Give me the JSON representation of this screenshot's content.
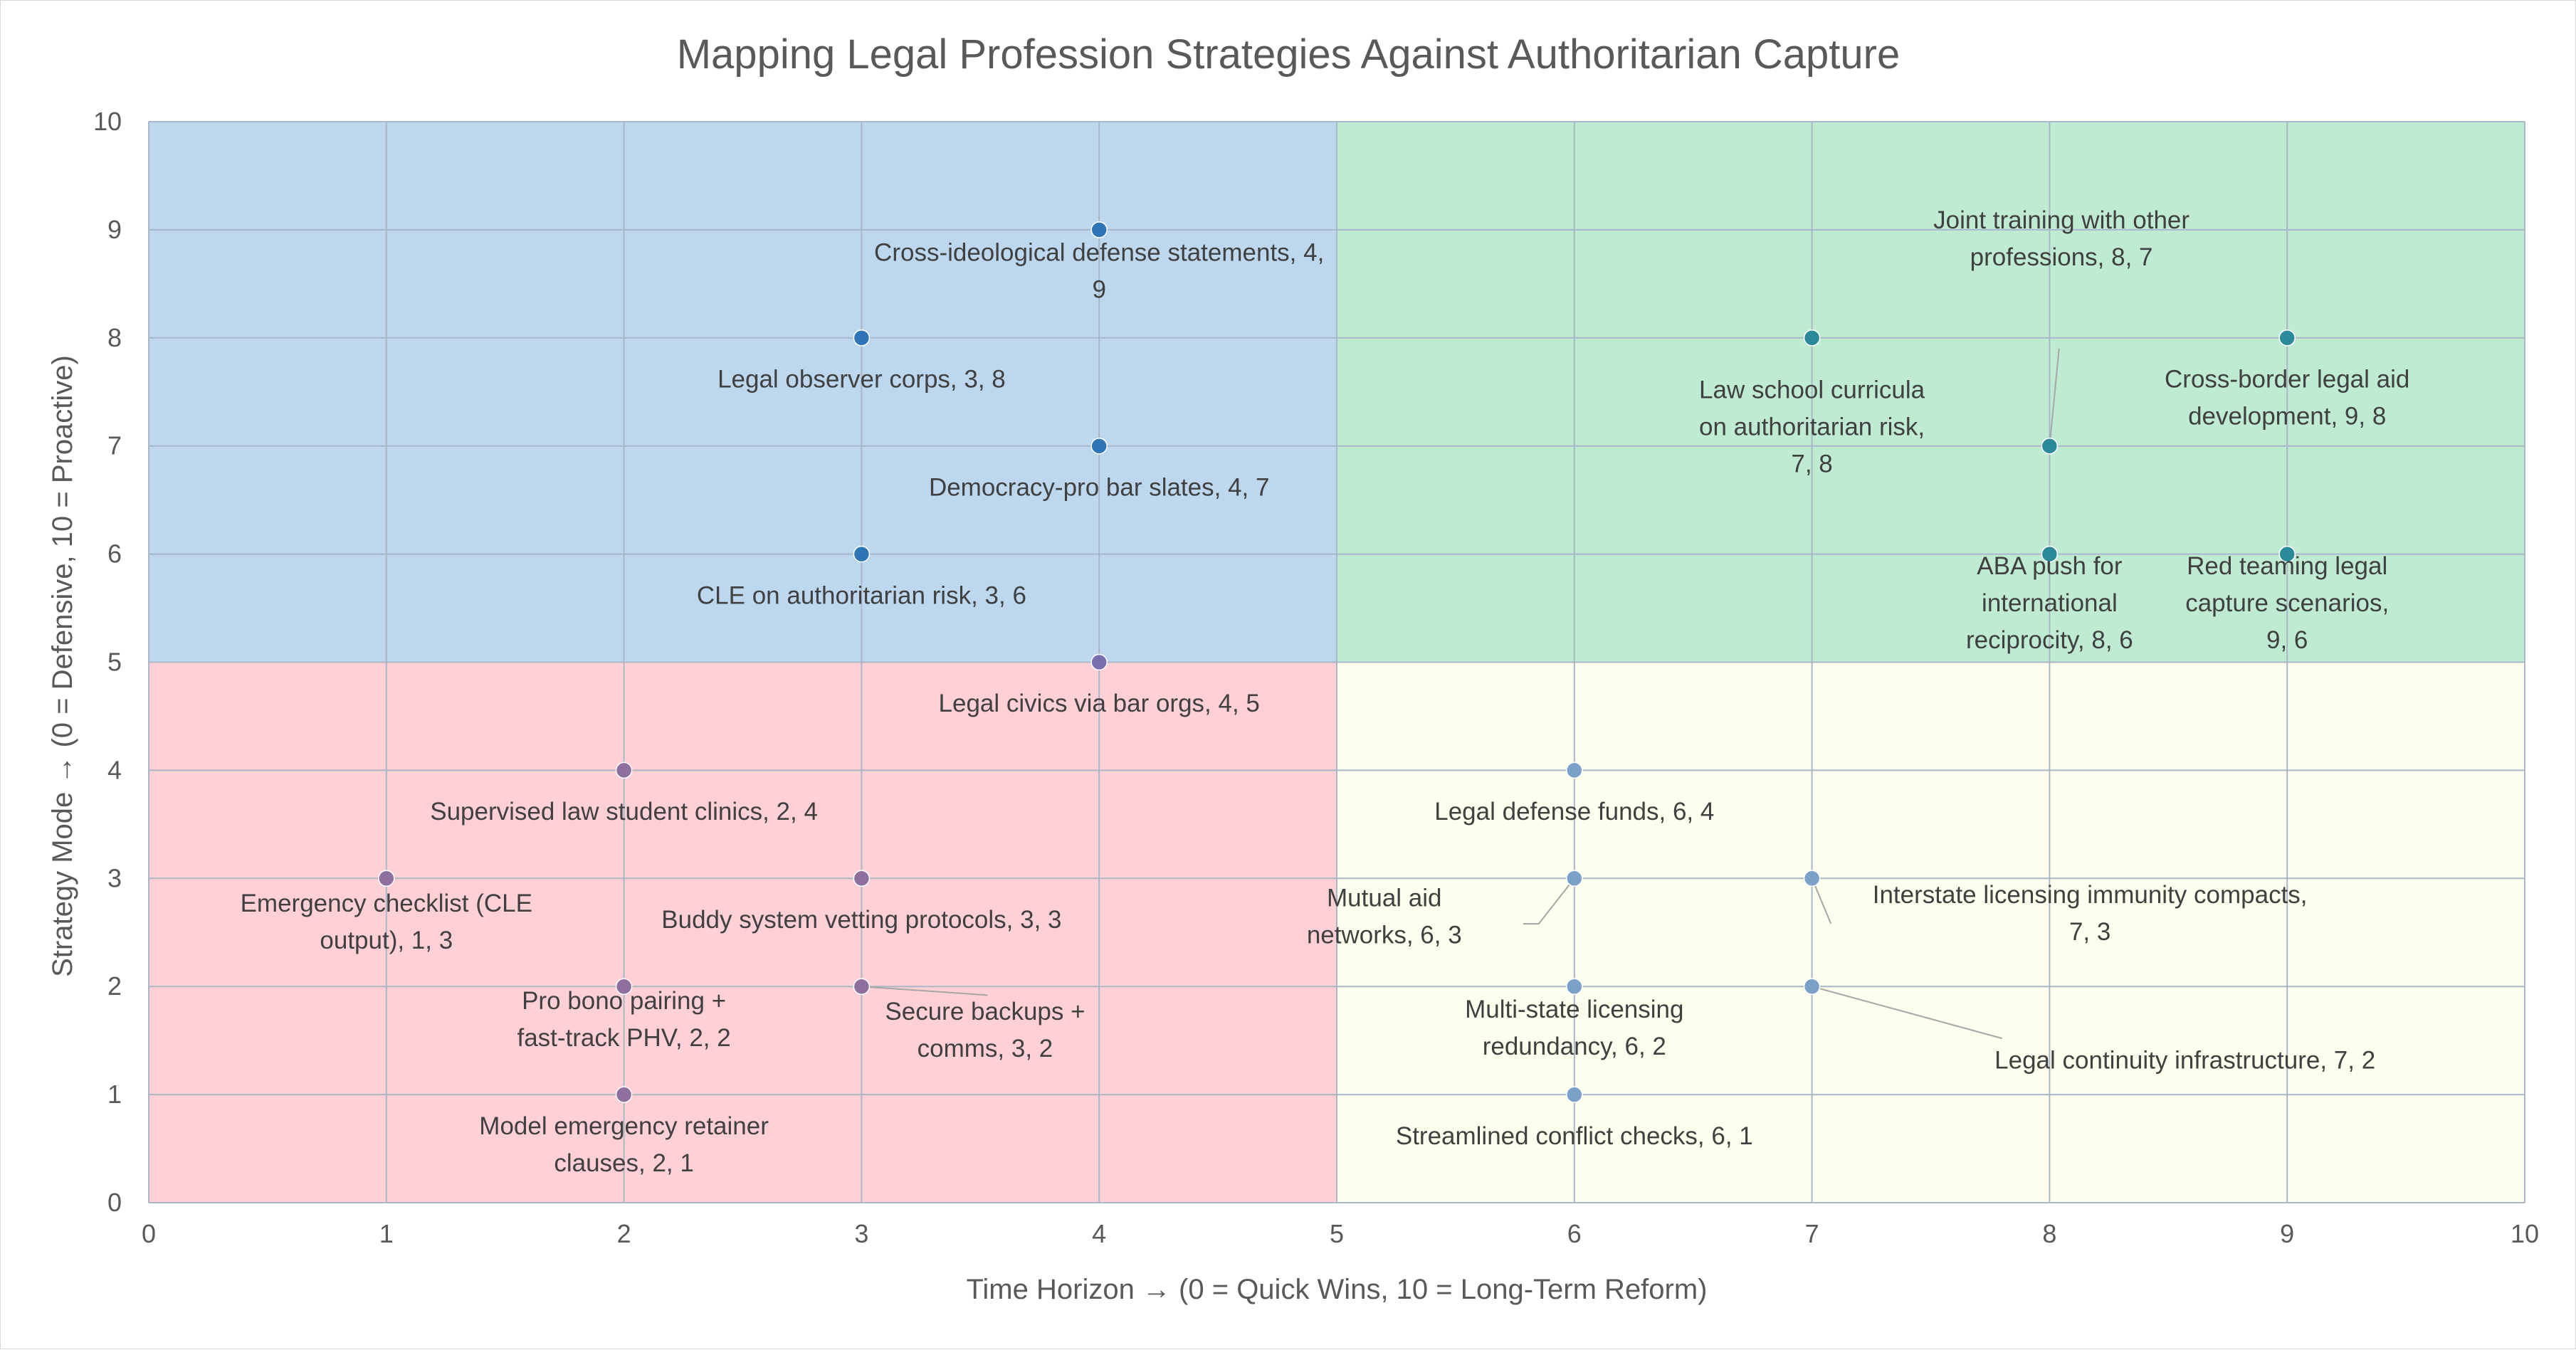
{
  "chart_data": {
    "type": "scatter",
    "title": "Mapping Legal Profession Strategies Against Authoritarian Capture",
    "xlabel": "Time Horizon → (0 = Quick Wins, 10 = Long-Term Reform)",
    "ylabel": "Strategy Mode → (0 = Defensive, 10 = Proactive)",
    "xlim": [
      0,
      10
    ],
    "ylim": [
      0,
      10
    ],
    "x_ticks": [
      0,
      1,
      2,
      3,
      4,
      5,
      6,
      7,
      8,
      9,
      10
    ],
    "y_ticks": [
      0,
      1,
      2,
      3,
      4,
      5,
      6,
      7,
      8,
      9,
      10
    ],
    "grid": true,
    "quadrants": [
      {
        "x": [
          0,
          5
        ],
        "y": [
          5,
          10
        ],
        "color": "#bdd7ee"
      },
      {
        "x": [
          5,
          10
        ],
        "y": [
          5,
          10
        ],
        "color": "#c0ebd3"
      },
      {
        "x": [
          0,
          5
        ],
        "y": [
          0,
          5
        ],
        "color": "#ffd0d5"
      },
      {
        "x": [
          5,
          10
        ],
        "y": [
          0,
          5
        ],
        "color": "#fefeee"
      }
    ],
    "points": [
      {
        "x": 4,
        "y": 9,
        "label": [
          "Cross-ideological defense statements, 4,",
          "9"
        ],
        "color": "#2e75b6"
      },
      {
        "x": 3,
        "y": 8,
        "label": [
          "Legal observer corps, 3, 8"
        ],
        "color": "#2e75b6"
      },
      {
        "x": 4,
        "y": 7,
        "label": [
          "Democracy-pro bar slates, 4, 7"
        ],
        "color": "#2e75b6"
      },
      {
        "x": 3,
        "y": 6,
        "label": [
          "CLE on authoritarian risk, 3, 6"
        ],
        "color": "#2e75b6"
      },
      {
        "x": 4,
        "y": 5,
        "label": [
          "Legal civics via bar orgs, 4, 5"
        ],
        "color": "#7a6fae"
      },
      {
        "x": 7,
        "y": 8,
        "label": [
          "Law school curricula",
          "on authoritarian risk,",
          "7, 8"
        ],
        "color": "#2a8a9a"
      },
      {
        "x": 8,
        "y": 7,
        "label": [
          "Joint training with other",
          "professions, 8, 7"
        ],
        "color": "#2a8a9a"
      },
      {
        "x": 9,
        "y": 8,
        "label": [
          "Cross-border legal aid",
          "development, 9, 8"
        ],
        "color": "#2a8a9a"
      },
      {
        "x": 8,
        "y": 6,
        "label": [
          "ABA push for",
          "international",
          "reciprocity, 8, 6"
        ],
        "color": "#2a8a9a"
      },
      {
        "x": 9,
        "y": 6,
        "label": [
          "Red teaming legal",
          "capture scenarios,",
          "9, 6"
        ],
        "color": "#2a8a9a"
      },
      {
        "x": 2,
        "y": 4,
        "label": [
          "Supervised law student clinics, 2, 4"
        ],
        "color": "#8e6f9e"
      },
      {
        "x": 1,
        "y": 3,
        "label": [
          "Emergency checklist (CLE",
          "output), 1, 3"
        ],
        "color": "#8e6f9e"
      },
      {
        "x": 3,
        "y": 3,
        "label": [
          "Buddy system vetting protocols, 3, 3"
        ],
        "color": "#8e6f9e"
      },
      {
        "x": 2,
        "y": 2,
        "label": [
          "Pro bono pairing +",
          "fast-track PHV, 2, 2"
        ],
        "color": "#8e6f9e"
      },
      {
        "x": 3,
        "y": 2,
        "label": [
          "Secure backups +",
          "comms, 3, 2"
        ],
        "color": "#8e6f9e"
      },
      {
        "x": 2,
        "y": 1,
        "label": [
          "Model emergency retainer",
          "clauses, 2, 1"
        ],
        "color": "#8e6f9e"
      },
      {
        "x": 6,
        "y": 4,
        "label": [
          "Legal defense funds, 6, 4"
        ],
        "color": "#7ba1c9"
      },
      {
        "x": 6,
        "y": 3,
        "label": [
          "Mutual aid",
          "networks, 6, 3"
        ],
        "color": "#7ba1c9"
      },
      {
        "x": 7,
        "y": 3,
        "label": [
          "Interstate licensing immunity compacts,",
          "7, 3"
        ],
        "color": "#7ba1c9"
      },
      {
        "x": 6,
        "y": 2,
        "label": [
          "Multi-state licensing",
          "redundancy, 6, 2"
        ],
        "color": "#7ba1c9"
      },
      {
        "x": 7,
        "y": 2,
        "label": [
          "Legal continuity infrastructure, 7, 2"
        ],
        "color": "#7ba1c9"
      },
      {
        "x": 6,
        "y": 1,
        "label": [
          "Streamlined conflict checks, 6, 1"
        ],
        "color": "#7ba1c9"
      }
    ]
  }
}
